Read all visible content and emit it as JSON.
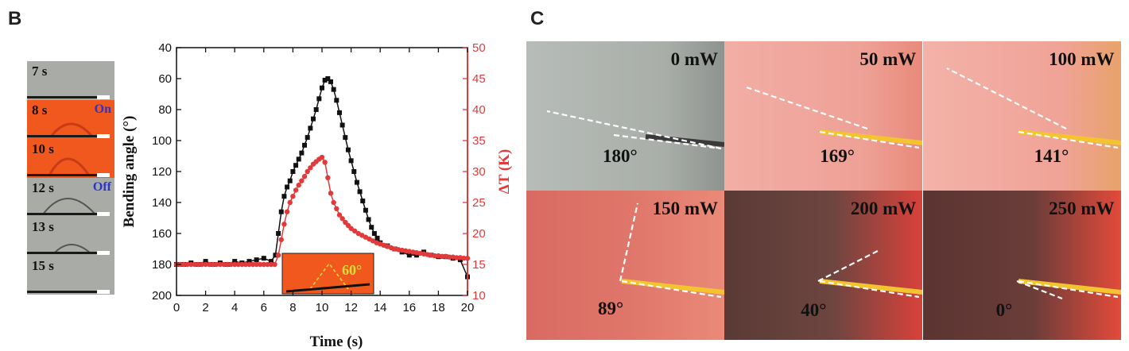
{
  "panels": {
    "b_label": "B",
    "c_label": "C"
  },
  "frames": [
    {
      "time": "7 s",
      "state": "",
      "tone": "gray"
    },
    {
      "time": "8 s",
      "state": "On",
      "tone": "orange"
    },
    {
      "time": "10 s",
      "state": "",
      "tone": "orange"
    },
    {
      "time": "12 s",
      "state": "Off",
      "tone": "gray"
    },
    {
      "time": "13 s",
      "state": "",
      "tone": "gray"
    },
    {
      "time": "15 s",
      "state": "",
      "tone": "gray"
    }
  ],
  "chart_data": {
    "type": "line",
    "xlabel": "Time (s)",
    "ylabel_left": "Bending angle (°)",
    "ylabel_right": "ΔT (K)",
    "xlim": [
      0,
      20
    ],
    "ylim_left": [
      40,
      200
    ],
    "ylim_left_inverted": true,
    "ylim_right": [
      10,
      50
    ],
    "x_ticks": [
      0,
      2,
      4,
      6,
      8,
      10,
      12,
      14,
      16,
      18,
      20
    ],
    "y_left_ticks": [
      40,
      60,
      80,
      100,
      120,
      140,
      160,
      180,
      200
    ],
    "y_right_ticks": [
      10,
      15,
      20,
      25,
      30,
      35,
      40,
      45,
      50
    ],
    "inset_label": "60°",
    "series": [
      {
        "axis": "left",
        "color": "#111111",
        "marker": "square",
        "x": [
          0,
          0.5,
          1,
          1.5,
          2,
          2.5,
          3,
          3.5,
          4,
          4.5,
          5,
          5.5,
          6,
          6.5,
          6.8,
          7,
          7.2,
          7.4,
          7.6,
          7.8,
          8,
          8.2,
          8.4,
          8.6,
          8.8,
          9,
          9.2,
          9.4,
          9.6,
          9.8,
          10,
          10.2,
          10.4,
          10.6,
          10.8,
          11,
          11.2,
          11.4,
          11.6,
          11.8,
          12,
          12.2,
          12.4,
          12.6,
          12.8,
          13,
          13.2,
          13.4,
          13.6,
          13.8,
          14,
          14.5,
          15,
          15.5,
          16,
          16.5,
          17,
          17.5,
          18,
          18.5,
          19,
          19.5,
          20
        ],
        "values": [
          180,
          180,
          179,
          180,
          178,
          180,
          179,
          180,
          178,
          179,
          178,
          177,
          176,
          178,
          174,
          160,
          146,
          136,
          130,
          126,
          120,
          116,
          112,
          108,
          103,
          98,
          92,
          86,
          80,
          73,
          66,
          61,
          60,
          62,
          67,
          74,
          82,
          90,
          98,
          106,
          113,
          120,
          127,
          133,
          139,
          145,
          151,
          156,
          160,
          163,
          166,
          168,
          170,
          172,
          174,
          174,
          172,
          174,
          175,
          175,
          176,
          177,
          188
        ]
      },
      {
        "axis": "right",
        "color": "#e23a3a",
        "marker": "circle",
        "x": [
          0,
          0.25,
          0.5,
          0.75,
          1,
          1.25,
          1.5,
          1.75,
          2,
          2.25,
          2.5,
          2.75,
          3,
          3.25,
          3.5,
          3.75,
          4,
          4.25,
          4.5,
          4.75,
          5,
          5.25,
          5.5,
          5.75,
          6,
          6.25,
          6.5,
          6.75,
          7,
          7.2,
          7.4,
          7.6,
          7.8,
          8,
          8.2,
          8.4,
          8.6,
          8.8,
          9,
          9.2,
          9.4,
          9.6,
          9.8,
          10,
          10.2,
          10.4,
          10.6,
          10.8,
          11,
          11.2,
          11.4,
          11.6,
          11.8,
          12,
          12.25,
          12.5,
          12.75,
          13,
          13.25,
          13.5,
          13.75,
          14,
          14.25,
          14.5,
          14.75,
          15,
          15.25,
          15.5,
          15.75,
          16,
          16.25,
          16.5,
          16.75,
          17,
          17.25,
          17.5,
          17.75,
          18,
          18.25,
          18.5,
          18.75,
          19,
          19.25,
          19.5,
          19.75,
          20
        ],
        "values": [
          15,
          15,
          15,
          15,
          15,
          15,
          15,
          15,
          15,
          15,
          15,
          15,
          15,
          15,
          15,
          15,
          15,
          15,
          15,
          15,
          15,
          15,
          15,
          15,
          15,
          15,
          15,
          15,
          16.5,
          19,
          21.5,
          23.5,
          25,
          26,
          27,
          27.8,
          28.5,
          29.2,
          30,
          30.6,
          31.2,
          31.6,
          32,
          32.3,
          31.5,
          29,
          26.5,
          25,
          24,
          23,
          22.4,
          21.8,
          21.3,
          20.8,
          20.4,
          20,
          19.7,
          19.4,
          19.1,
          18.8,
          18.5,
          18.3,
          18.1,
          17.9,
          17.7,
          17.5,
          17.4,
          17.3,
          17.2,
          17.1,
          17,
          16.9,
          16.8,
          16.7,
          16.6,
          16.5,
          16.4,
          16.4,
          16.3,
          16.3,
          16.2,
          16.2,
          16.1,
          16.1,
          16,
          16
        ]
      }
    ]
  },
  "tiles": [
    {
      "power": "0 mW",
      "angle": "180°",
      "tone": "gray"
    },
    {
      "power": "50 mW",
      "angle": "169°",
      "tone": "pink"
    },
    {
      "power": "100 mW",
      "angle": "141°",
      "tone": "pinklight"
    },
    {
      "power": "150 mW",
      "angle": "89°",
      "tone": "red"
    },
    {
      "power": "200 mW",
      "angle": "40°",
      "tone": "dark"
    },
    {
      "power": "250 mW",
      "angle": "0°",
      "tone": "darkred"
    }
  ],
  "colors": {
    "left_axis": "#111111",
    "right_axis": "#e23a3a",
    "on_off_text": "#2a35c9",
    "orange_frame": "#f0581e",
    "gray_frame": "#a9aba6"
  }
}
